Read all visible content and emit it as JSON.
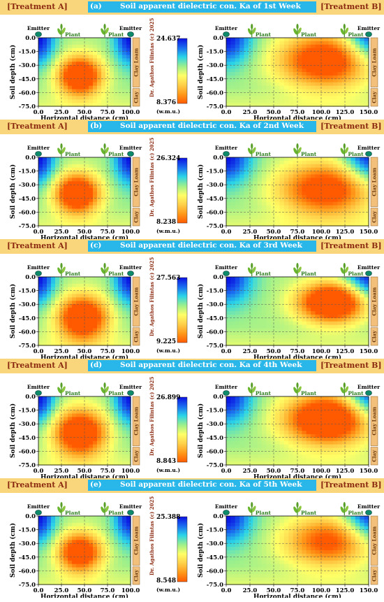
{
  "chart_data": [
    {
      "type": "heatmap",
      "panel_letter": "(a)",
      "title": "Soil apparent dielectric con. Ka of 1st Week",
      "colorbar": {
        "max": 24.637,
        "min": 8.376,
        "unit": "(w.m.u.)"
      },
      "treatment_a": {
        "hot_x": 45,
        "hot_y": -42,
        "hot_r": 22,
        "hot_strength": 0.85
      },
      "treatment_b": {
        "hot_x": 70,
        "hot_y": -25,
        "hot_r": 30,
        "hot_strength": 0.75
      }
    },
    {
      "type": "heatmap",
      "panel_letter": "(b)",
      "title": "Soil apparent dielectric con. Ka of 2nd Week",
      "colorbar": {
        "max": 26.324,
        "min": 8.238,
        "unit": "(w.m.u.)"
      },
      "treatment_a": {
        "hot_x": 42,
        "hot_y": -40,
        "hot_r": 22,
        "hot_strength": 0.88
      },
      "treatment_b": {
        "hot_x": 70,
        "hot_y": -35,
        "hot_r": 30,
        "hot_strength": 0.7
      }
    },
    {
      "type": "heatmap",
      "panel_letter": "(c)",
      "title": "Soil apparent dielectric con. Ka of 3rd Week",
      "colorbar": {
        "max": 27.563,
        "min": 9.225,
        "unit": "(w.m.u.)"
      },
      "treatment_a": {
        "hot_x": 48,
        "hot_y": -45,
        "hot_r": 25,
        "hot_strength": 0.85
      },
      "treatment_b": {
        "hot_x": 75,
        "hot_y": -28,
        "hot_r": 22,
        "hot_strength": 0.95
      }
    },
    {
      "type": "heatmap",
      "panel_letter": "(d)",
      "title": "Soil apparent dielectric con. Ka of 4th Week",
      "colorbar": {
        "max": 26.899,
        "min": 8.843,
        "unit": "(w.m.u.)"
      },
      "treatment_a": {
        "hot_x": 45,
        "hot_y": -40,
        "hot_r": 26,
        "hot_strength": 0.85
      },
      "treatment_b": {
        "hot_x": 72,
        "hot_y": -25,
        "hot_r": 28,
        "hot_strength": 0.92
      }
    },
    {
      "type": "heatmap",
      "panel_letter": "(e)",
      "title": "Soil apparent dielectric con. Ka of 5th Week",
      "colorbar": {
        "max": 25.388,
        "min": 8.548,
        "unit": "(w.m.u.)"
      },
      "treatment_a": {
        "hot_x": 45,
        "hot_y": -40,
        "hot_r": 22,
        "hot_strength": 0.78
      },
      "treatment_b": {
        "hot_x": 72,
        "hot_y": -28,
        "hot_r": 28,
        "hot_strength": 0.6
      }
    }
  ],
  "common": {
    "treatment_a_label": "[Treatment A]",
    "treatment_b_label": "[Treatment B]",
    "emitter_label": "Emitter",
    "plant_label": "Plant",
    "ylabel": "Soil depth (cm)",
    "xlabel": "Horizontal distance (cm)",
    "credit": "Dr. Agathos Filintas (c) 2025",
    "soil_layers": [
      "Clay Loam",
      "Clay"
    ],
    "y_ticks": [
      0.0,
      -15.0,
      -30.0,
      -45.0,
      -60.0,
      -75.0
    ],
    "y_tick_labels": [
      "0.0",
      "-15.0",
      "-30.0",
      "-45.0",
      "-60.0",
      "-75.0"
    ],
    "x_ticks_a": [
      0,
      25,
      50,
      75,
      100
    ],
    "x_tick_labels_a": [
      "0.0",
      "25.0",
      "50.0",
      "75.0",
      "100.0"
    ],
    "x_ticks_b": [
      0,
      25,
      50,
      75,
      100,
      125,
      150
    ],
    "x_tick_labels_b": [
      "0.0",
      "25.0",
      "50.0",
      "75.0",
      "100.0",
      "125.0",
      "150.0"
    ],
    "xlim_a": [
      0,
      100
    ],
    "xlim_b": [
      0,
      150
    ],
    "ylim": [
      -75,
      0
    ],
    "colormap": [
      "#ff5a00",
      "#ff9a1a",
      "#ffd04a",
      "#ffff66",
      "#9cf08c",
      "#2ad4e8",
      "#1a6cf0",
      "#0a10e0"
    ]
  }
}
